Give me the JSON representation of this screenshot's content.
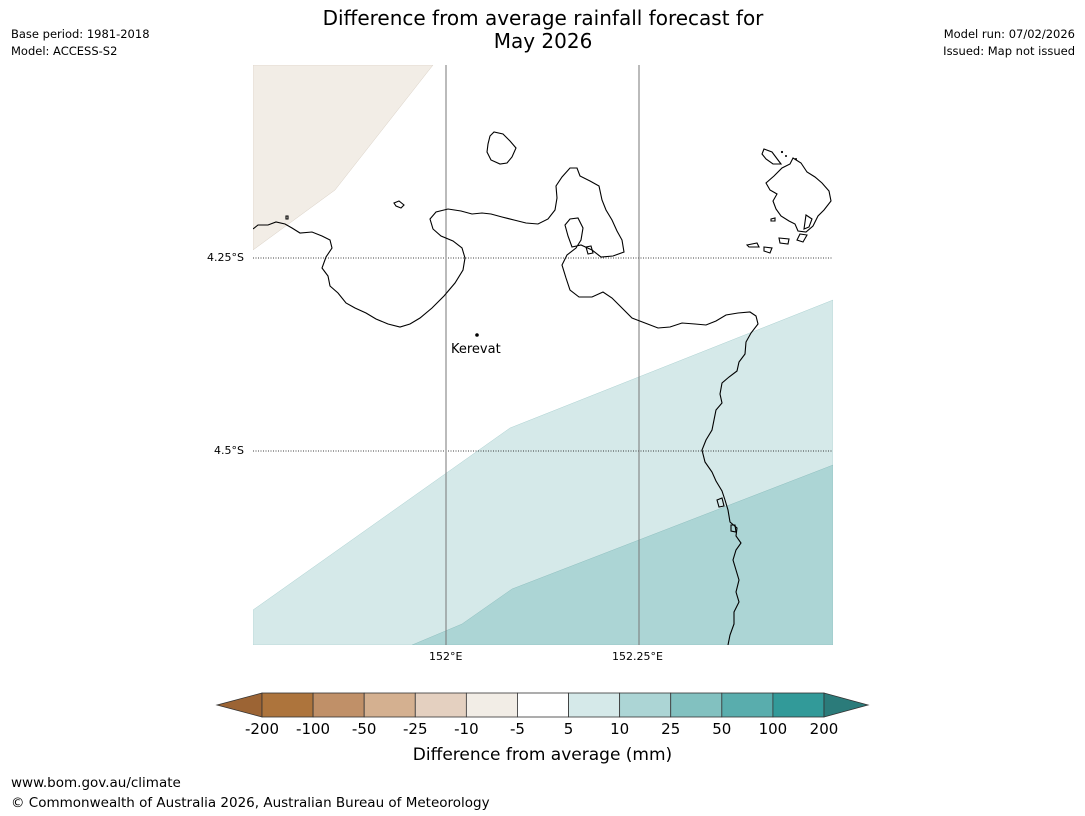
{
  "header": {
    "title_line1": "Difference from average rainfall forecast for",
    "title_line2": "May 2026",
    "base_period": "Base period: 1981-2018",
    "model": "Model: ACCESS-S2",
    "model_run": "Model run: 07/02/2026",
    "issued": "Issued: Map not issued"
  },
  "map": {
    "lat_labels": [
      "4.25°S",
      "4.5°S"
    ],
    "lon_labels": [
      "152°E",
      "152.25°E"
    ],
    "places": [
      {
        "name": "Kerevat"
      }
    ]
  },
  "legend": {
    "title": "Difference from average (mm)",
    "tick_labels": [
      "-200",
      "-100",
      "-50",
      "-25",
      "-10",
      "-5",
      "5",
      "10",
      "25",
      "50",
      "100",
      "200"
    ],
    "colors": [
      "#9c6434",
      "#ad743c",
      "#c09068",
      "#d4b090",
      "#e4d0c0",
      "#f2ede6",
      "#ffffff",
      "#d5e9e9",
      "#acd5d5",
      "#82c1c0",
      "#59adad",
      "#329a99",
      "#2b7b7a"
    ]
  },
  "footer": {
    "url": "www.bom.gov.au/climate",
    "copyright": "© Commonwealth of Australia 2026, Australian Bureau of Meteorology"
  }
}
